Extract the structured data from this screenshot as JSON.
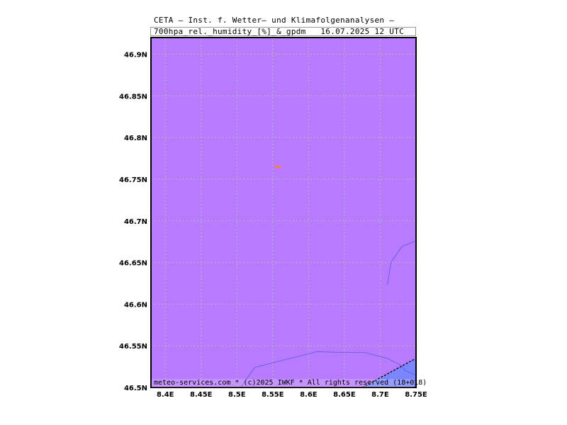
{
  "header": {
    "line1": "CETA — Inst. f. Wetter— und Klimafolgenanalysen —",
    "line2": "700hpa_rel._humidity_[%]_&_gpdm   16.07.2025 12 UTC"
  },
  "map": {
    "fill_color": "#b87aff",
    "lower_fill_color": "#7b85ff",
    "contour_color": "#5a5ae8",
    "marker_color": "#ff7b4a",
    "grid_color": "#b8b8b8",
    "lat_labels": [
      "46.9N",
      "46.85N",
      "46.8N",
      "46.75N",
      "46.7N",
      "46.65N",
      "46.6N",
      "46.55N",
      "46.5N"
    ],
    "lat_values": [
      46.9,
      46.85,
      46.8,
      46.75,
      46.7,
      46.65,
      46.6,
      46.55,
      46.5
    ],
    "lon_labels": [
      "8.4E",
      "8.45E",
      "8.5E",
      "8.55E",
      "8.6E",
      "8.65E",
      "8.7E",
      "8.75E"
    ],
    "lon_values": [
      8.4,
      8.45,
      8.5,
      8.55,
      8.6,
      8.65,
      8.7,
      8.75
    ],
    "lon_range": [
      8.38,
      8.75
    ],
    "lat_range": [
      46.5,
      46.92
    ]
  },
  "footer": {
    "text": "meteo-services.com * (c)2025 IWKF * All rights reserved (18+018)"
  }
}
